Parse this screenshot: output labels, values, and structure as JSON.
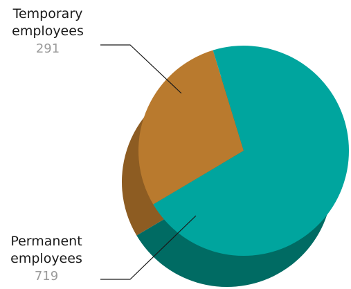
{
  "chart_data": {
    "type": "pie",
    "title": "",
    "slices": [
      {
        "label_line1": "Temporary",
        "label_line2": "employees",
        "value": 291,
        "value_text": "291",
        "color": "#b97a2e",
        "side_color": "#8d5c22"
      },
      {
        "label_line1": "Permanent",
        "label_line2": "employees",
        "value": 719,
        "value_text": "719",
        "color": "#00a59e",
        "side_color": "#006b63"
      }
    ],
    "style": "3d",
    "legend": "none"
  }
}
